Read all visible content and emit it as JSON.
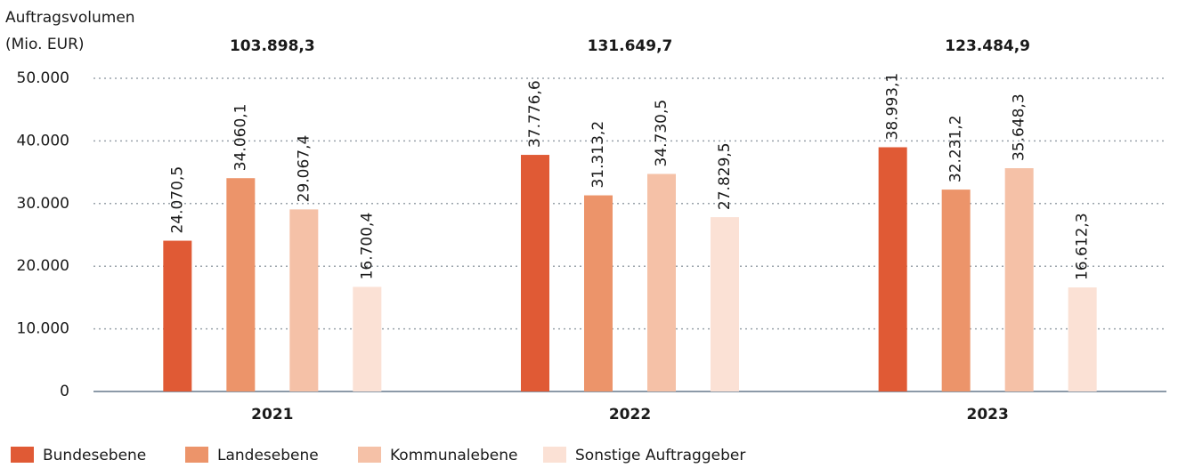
{
  "chart_data": {
    "type": "bar",
    "y_label": [
      "Auftragsvolumen",
      "(Mio. EUR)"
    ],
    "categories": [
      "2021",
      "2022",
      "2023"
    ],
    "totals": [
      103898.3,
      131649.7,
      123484.9
    ],
    "total_labels": [
      "103.898,3",
      "131.649,7",
      "123.484,9"
    ],
    "series": [
      {
        "name": "Bundesebene",
        "color": "#e05a35",
        "values": [
          24070.5,
          37776.6,
          38993.1
        ],
        "value_labels": [
          "24.070,5",
          "37.776,6",
          "38.993,1"
        ]
      },
      {
        "name": "Landesebene",
        "color": "#ec946a",
        "values": [
          34060.1,
          31313.2,
          32231.2
        ],
        "value_labels": [
          "34.060,1",
          "31.313,2",
          "32.231,2"
        ]
      },
      {
        "name": "Kommunalebene",
        "color": "#f5c1a7",
        "values": [
          29067.4,
          34730.5,
          35648.3
        ],
        "value_labels": [
          "29.067,4",
          "34.730,5",
          "35.648,3"
        ]
      },
      {
        "name": "Sonstige Auftraggeber",
        "color": "#fbe1d5",
        "values": [
          16700.4,
          27829.5,
          16612.3
        ],
        "value_labels": [
          "16.700,4",
          "27.829,5",
          "16.612,3"
        ]
      }
    ],
    "ylim": [
      0,
      50000
    ],
    "yticks": [
      0,
      {
        "value": 10000,
        "label": "10.000"
      },
      {
        "value": 20000,
        "label": "20.000"
      },
      {
        "value": 30000,
        "label": "30.000"
      },
      {
        "value": 40000,
        "label": "40.000"
      },
      {
        "value": 50000,
        "label": "50.000"
      }
    ],
    "grid": true,
    "legend": "bottom-left"
  }
}
